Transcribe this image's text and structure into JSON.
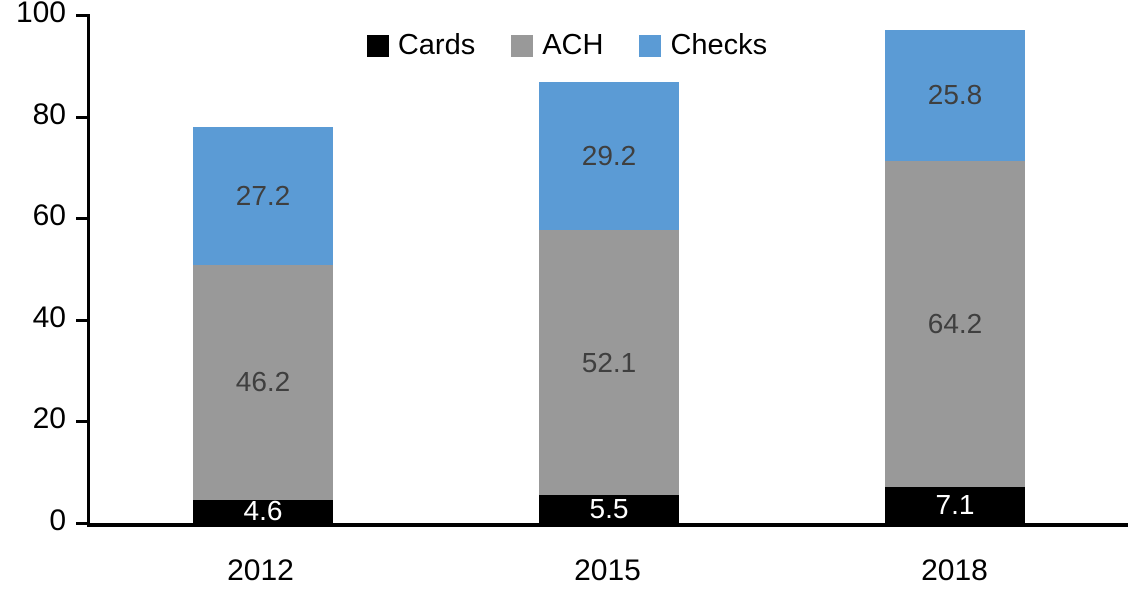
{
  "chart_data": {
    "type": "bar",
    "stacked": true,
    "title": "",
    "xlabel": "",
    "ylabel": "",
    "categories": [
      "2012",
      "2015",
      "2018"
    ],
    "series": [
      {
        "name": "Cards",
        "color": "#000000",
        "label_color": "#ffffff",
        "values": [
          4.6,
          5.5,
          7.1
        ]
      },
      {
        "name": "ACH",
        "color": "#999999",
        "label_color": "#3f3f3f",
        "values": [
          46.2,
          52.1,
          64.2
        ]
      },
      {
        "name": "Checks",
        "color": "#5b9bd5",
        "label_color": "#3f3f3f",
        "values": [
          27.2,
          29.2,
          25.8
        ]
      }
    ],
    "totals": [
      78.0,
      86.8,
      97.1
    ],
    "ylim": [
      0,
      100
    ],
    "yticks": [
      0,
      20,
      40,
      60,
      80,
      100
    ],
    "grid": false,
    "legend_position": "top-center",
    "axis_color": "#000000"
  }
}
